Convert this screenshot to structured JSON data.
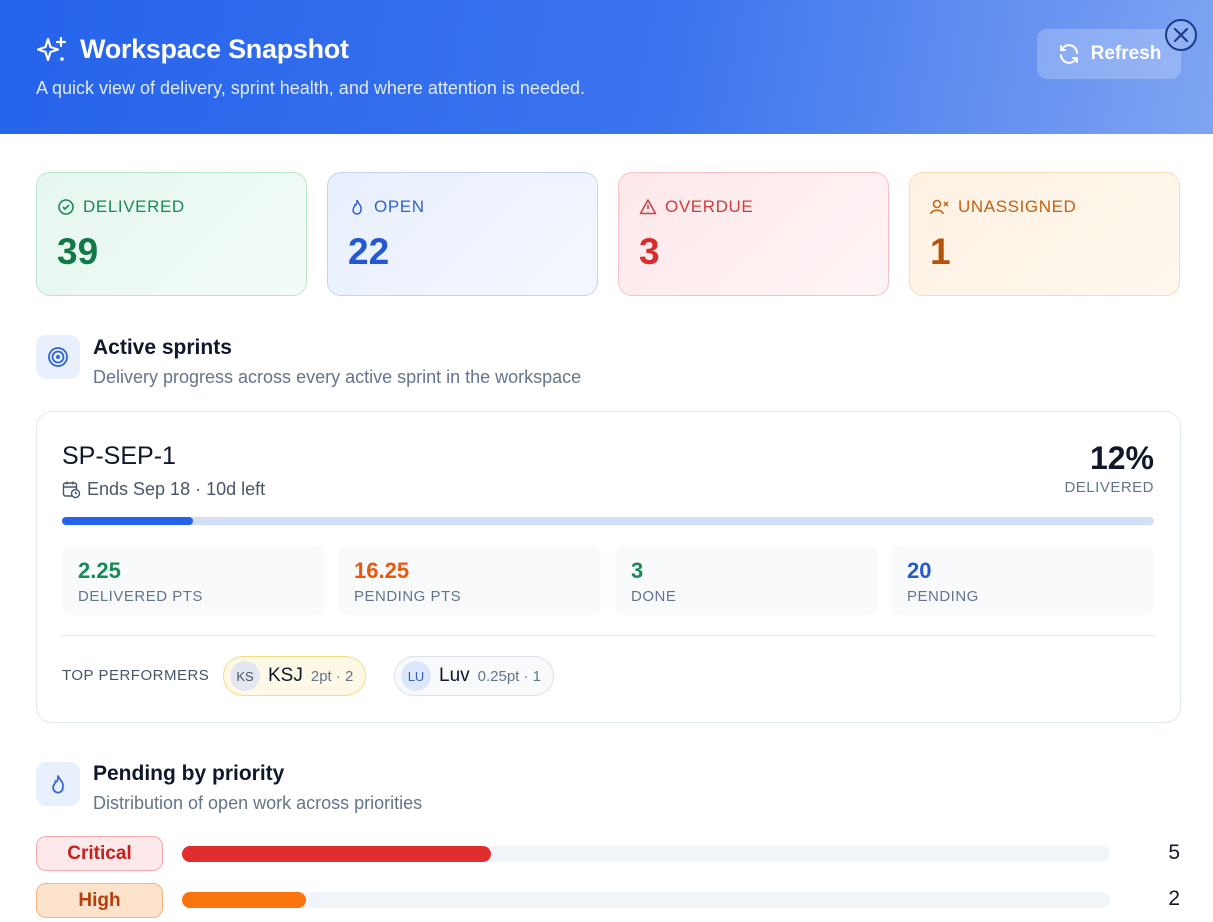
{
  "header": {
    "title": "Workspace Snapshot",
    "subtitle": "A quick view of delivery, sprint health, and where attention is needed.",
    "refresh": "Refresh"
  },
  "stats": [
    {
      "label": "DELIVERED",
      "value": 39
    },
    {
      "label": "OPEN",
      "value": 22
    },
    {
      "label": "OVERDUE",
      "value": 3
    },
    {
      "label": "UNASSIGNED",
      "value": 1
    }
  ],
  "sprints": {
    "title": "Active sprints",
    "subtitle": "Delivery progress across every active sprint in the workspace",
    "items": [
      {
        "name": "SP-SEP-1",
        "ends": "Ends Sep 18 · 10d left",
        "percent": {
          "value": 12,
          "label": "12%"
        },
        "percent_caption": "DELIVERED",
        "metrics": [
          {
            "value": 2.25,
            "label": "DELIVERED PTS"
          },
          {
            "value": 16.25,
            "label": "PENDING PTS"
          },
          {
            "value": 3,
            "label": "DONE"
          },
          {
            "value": 20,
            "label": "PENDING"
          }
        ],
        "performers_label": "TOP PERFORMERS",
        "performers": [
          {
            "initials": "KS",
            "name": "KSJ",
            "detail": "2pt · 2"
          },
          {
            "initials": "LU",
            "name": "Luv",
            "detail": "0.25pt · 1"
          }
        ]
      }
    ]
  },
  "priority": {
    "title": "Pending by priority",
    "subtitle": "Distribution of open work across priorities",
    "xlim": [
      0,
      15
    ],
    "rows": [
      {
        "label": "Critical",
        "value": 5
      },
      {
        "label": "High",
        "value": 2
      }
    ]
  }
}
